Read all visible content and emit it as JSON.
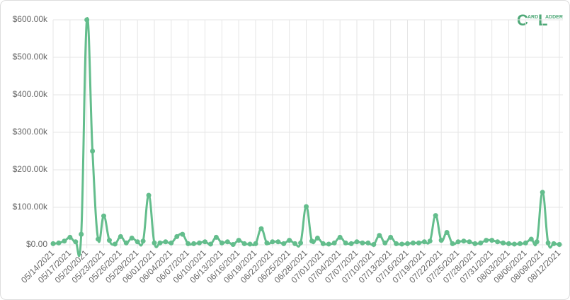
{
  "logo": {
    "first_initial": "C",
    "first_rest": "ARD",
    "second_initial": "L",
    "second_rest": "ADDER"
  },
  "chart_data": {
    "type": "line",
    "categories": [
      "05/14/2021",
      null,
      null,
      "05/17/2021",
      null,
      null,
      "05/20/2021",
      null,
      null,
      "05/23/2021",
      null,
      null,
      "05/26/2021",
      null,
      null,
      "05/29/2021",
      null,
      null,
      "06/01/2021",
      null,
      null,
      "06/04/2021",
      null,
      null,
      "06/07/2021",
      null,
      null,
      "06/10/2021",
      null,
      null,
      "06/13/2021",
      null,
      null,
      "06/16/2021",
      null,
      null,
      "06/19/2021",
      null,
      null,
      "06/22/2021",
      null,
      null,
      "06/25/2021",
      null,
      null,
      "06/28/2021",
      null,
      null,
      "07/01/2021",
      null,
      null,
      "07/04/2021",
      null,
      null,
      "07/07/2021",
      null,
      null,
      "07/10/2021",
      null,
      null,
      "07/13/2021",
      null,
      null,
      "07/16/2021",
      null,
      null,
      "07/19/2021",
      null,
      null,
      "07/22/2021",
      null,
      null,
      "07/25/2021",
      null,
      null,
      "07/28/2021",
      null,
      null,
      "07/31/2021",
      null,
      null,
      "08/03/2021",
      null,
      null,
      "08/06/2021",
      null,
      null,
      "08/09/2021",
      null,
      null,
      "08/12/2021"
    ],
    "values": [
      3000,
      5000,
      10000,
      20000,
      8000,
      28000,
      600000,
      250000,
      15000,
      77000,
      12000,
      2000,
      22000,
      5000,
      18000,
      8000,
      10000,
      132000,
      5000,
      5000,
      8000,
      5000,
      22000,
      28000,
      3000,
      3000,
      5000,
      8000,
      2000,
      20000,
      5000,
      8000,
      1000,
      12000,
      3000,
      2000,
      3000,
      43000,
      5000,
      8000,
      8000,
      3000,
      12000,
      3000,
      5000,
      102000,
      10000,
      18000,
      3000,
      2000,
      5000,
      20000,
      5000,
      3000,
      8000,
      5000,
      5000,
      1000,
      25000,
      5000,
      20000,
      3000,
      2000,
      3000,
      5000,
      5000,
      8000,
      10000,
      78000,
      12000,
      33000,
      3000,
      8000,
      10000,
      8000,
      3000,
      5000,
      12000,
      12000,
      8000,
      5000,
      3000,
      2000,
      3000,
      5000,
      15000,
      8000,
      140000,
      5000,
      3000,
      1000
    ],
    "color": "#63bd8c",
    "ylim": [
      0,
      600000
    ],
    "yticks": [
      {
        "value": 0,
        "label": "$0.00"
      },
      {
        "value": 100000,
        "label": "$100.00k"
      },
      {
        "value": 200000,
        "label": "$200.00k"
      },
      {
        "value": 300000,
        "label": "$300.00k"
      },
      {
        "value": 400000,
        "label": "$400.00k"
      },
      {
        "value": 500000,
        "label": "$500.00k"
      },
      {
        "value": 600000,
        "label": "$600.00k"
      }
    ],
    "grid": true
  }
}
